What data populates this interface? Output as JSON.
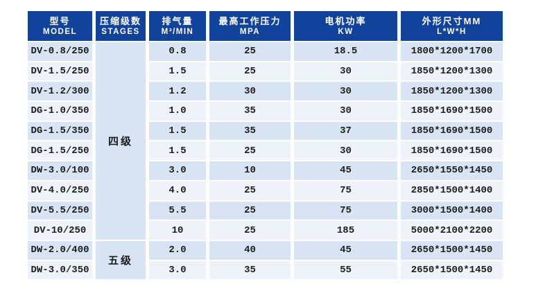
{
  "colors": {
    "header_bg": "#11439c",
    "stripe_a": "#d8e4f3",
    "stripe_b": "#eef3fa",
    "stage_a": "#dce7f5",
    "stage_b": "#ecf2f9",
    "body_text": "#1c1c1c",
    "header_text": "#ffffff"
  },
  "table": {
    "columns": [
      {
        "zh": "型号",
        "en": "MODEL"
      },
      {
        "zh": "压缩级数",
        "en": "STAGES"
      },
      {
        "zh": "排气量",
        "en": "M³/MIN"
      },
      {
        "zh": "最高工作压力",
        "en": "MPA"
      },
      {
        "zh": "电机功率",
        "en": "KW"
      },
      {
        "zh": "外形尺寸MM",
        "en": "L*W*H"
      }
    ],
    "stage_groups": [
      {
        "label": "四级",
        "row_count": 10
      },
      {
        "label": "五级",
        "row_count": 2
      }
    ],
    "rows": [
      {
        "model": "DV-0.8/250",
        "displacement": "0.8",
        "pressure": "25",
        "power": "18.5",
        "dimensions": "1800*1200*1700"
      },
      {
        "model": "DV-1.5/250",
        "displacement": "1.5",
        "pressure": "25",
        "power": "30",
        "dimensions": "1850*1200*1300"
      },
      {
        "model": "DV-1.2/300",
        "displacement": "1.2",
        "pressure": "30",
        "power": "30",
        "dimensions": "1850*1200*1300"
      },
      {
        "model": "DG-1.0/350",
        "displacement": "1.0",
        "pressure": "35",
        "power": "30",
        "dimensions": "1850*1690*1500"
      },
      {
        "model": "DG-1.5/350",
        "displacement": "1.5",
        "pressure": "35",
        "power": "37",
        "dimensions": "1850*1690*1500"
      },
      {
        "model": "DG-1.5/250",
        "displacement": "1.5",
        "pressure": "25",
        "power": "30",
        "dimensions": "1850*1690*1500"
      },
      {
        "model": "DW-3.0/100",
        "displacement": "3.0",
        "pressure": "10",
        "power": "45",
        "dimensions": "2650*1550*1450"
      },
      {
        "model": "DV-4.0/250",
        "displacement": "4.0",
        "pressure": "25",
        "power": "75",
        "dimensions": "2850*1500*1400"
      },
      {
        "model": "DV-5.5/250",
        "displacement": "5.5",
        "pressure": "25",
        "power": "75",
        "dimensions": "3000*1500*1400"
      },
      {
        "model": "DV-10/250",
        "displacement": "10",
        "pressure": "25",
        "power": "185",
        "dimensions": "5000*2100*2200"
      },
      {
        "model": "DW-2.0/400",
        "displacement": "2.0",
        "pressure": "40",
        "power": "45",
        "dimensions": "2650*1500*1450"
      },
      {
        "model": "DW-3.0/350",
        "displacement": "3.0",
        "pressure": "35",
        "power": "55",
        "dimensions": "2650*1500*1450"
      }
    ]
  }
}
